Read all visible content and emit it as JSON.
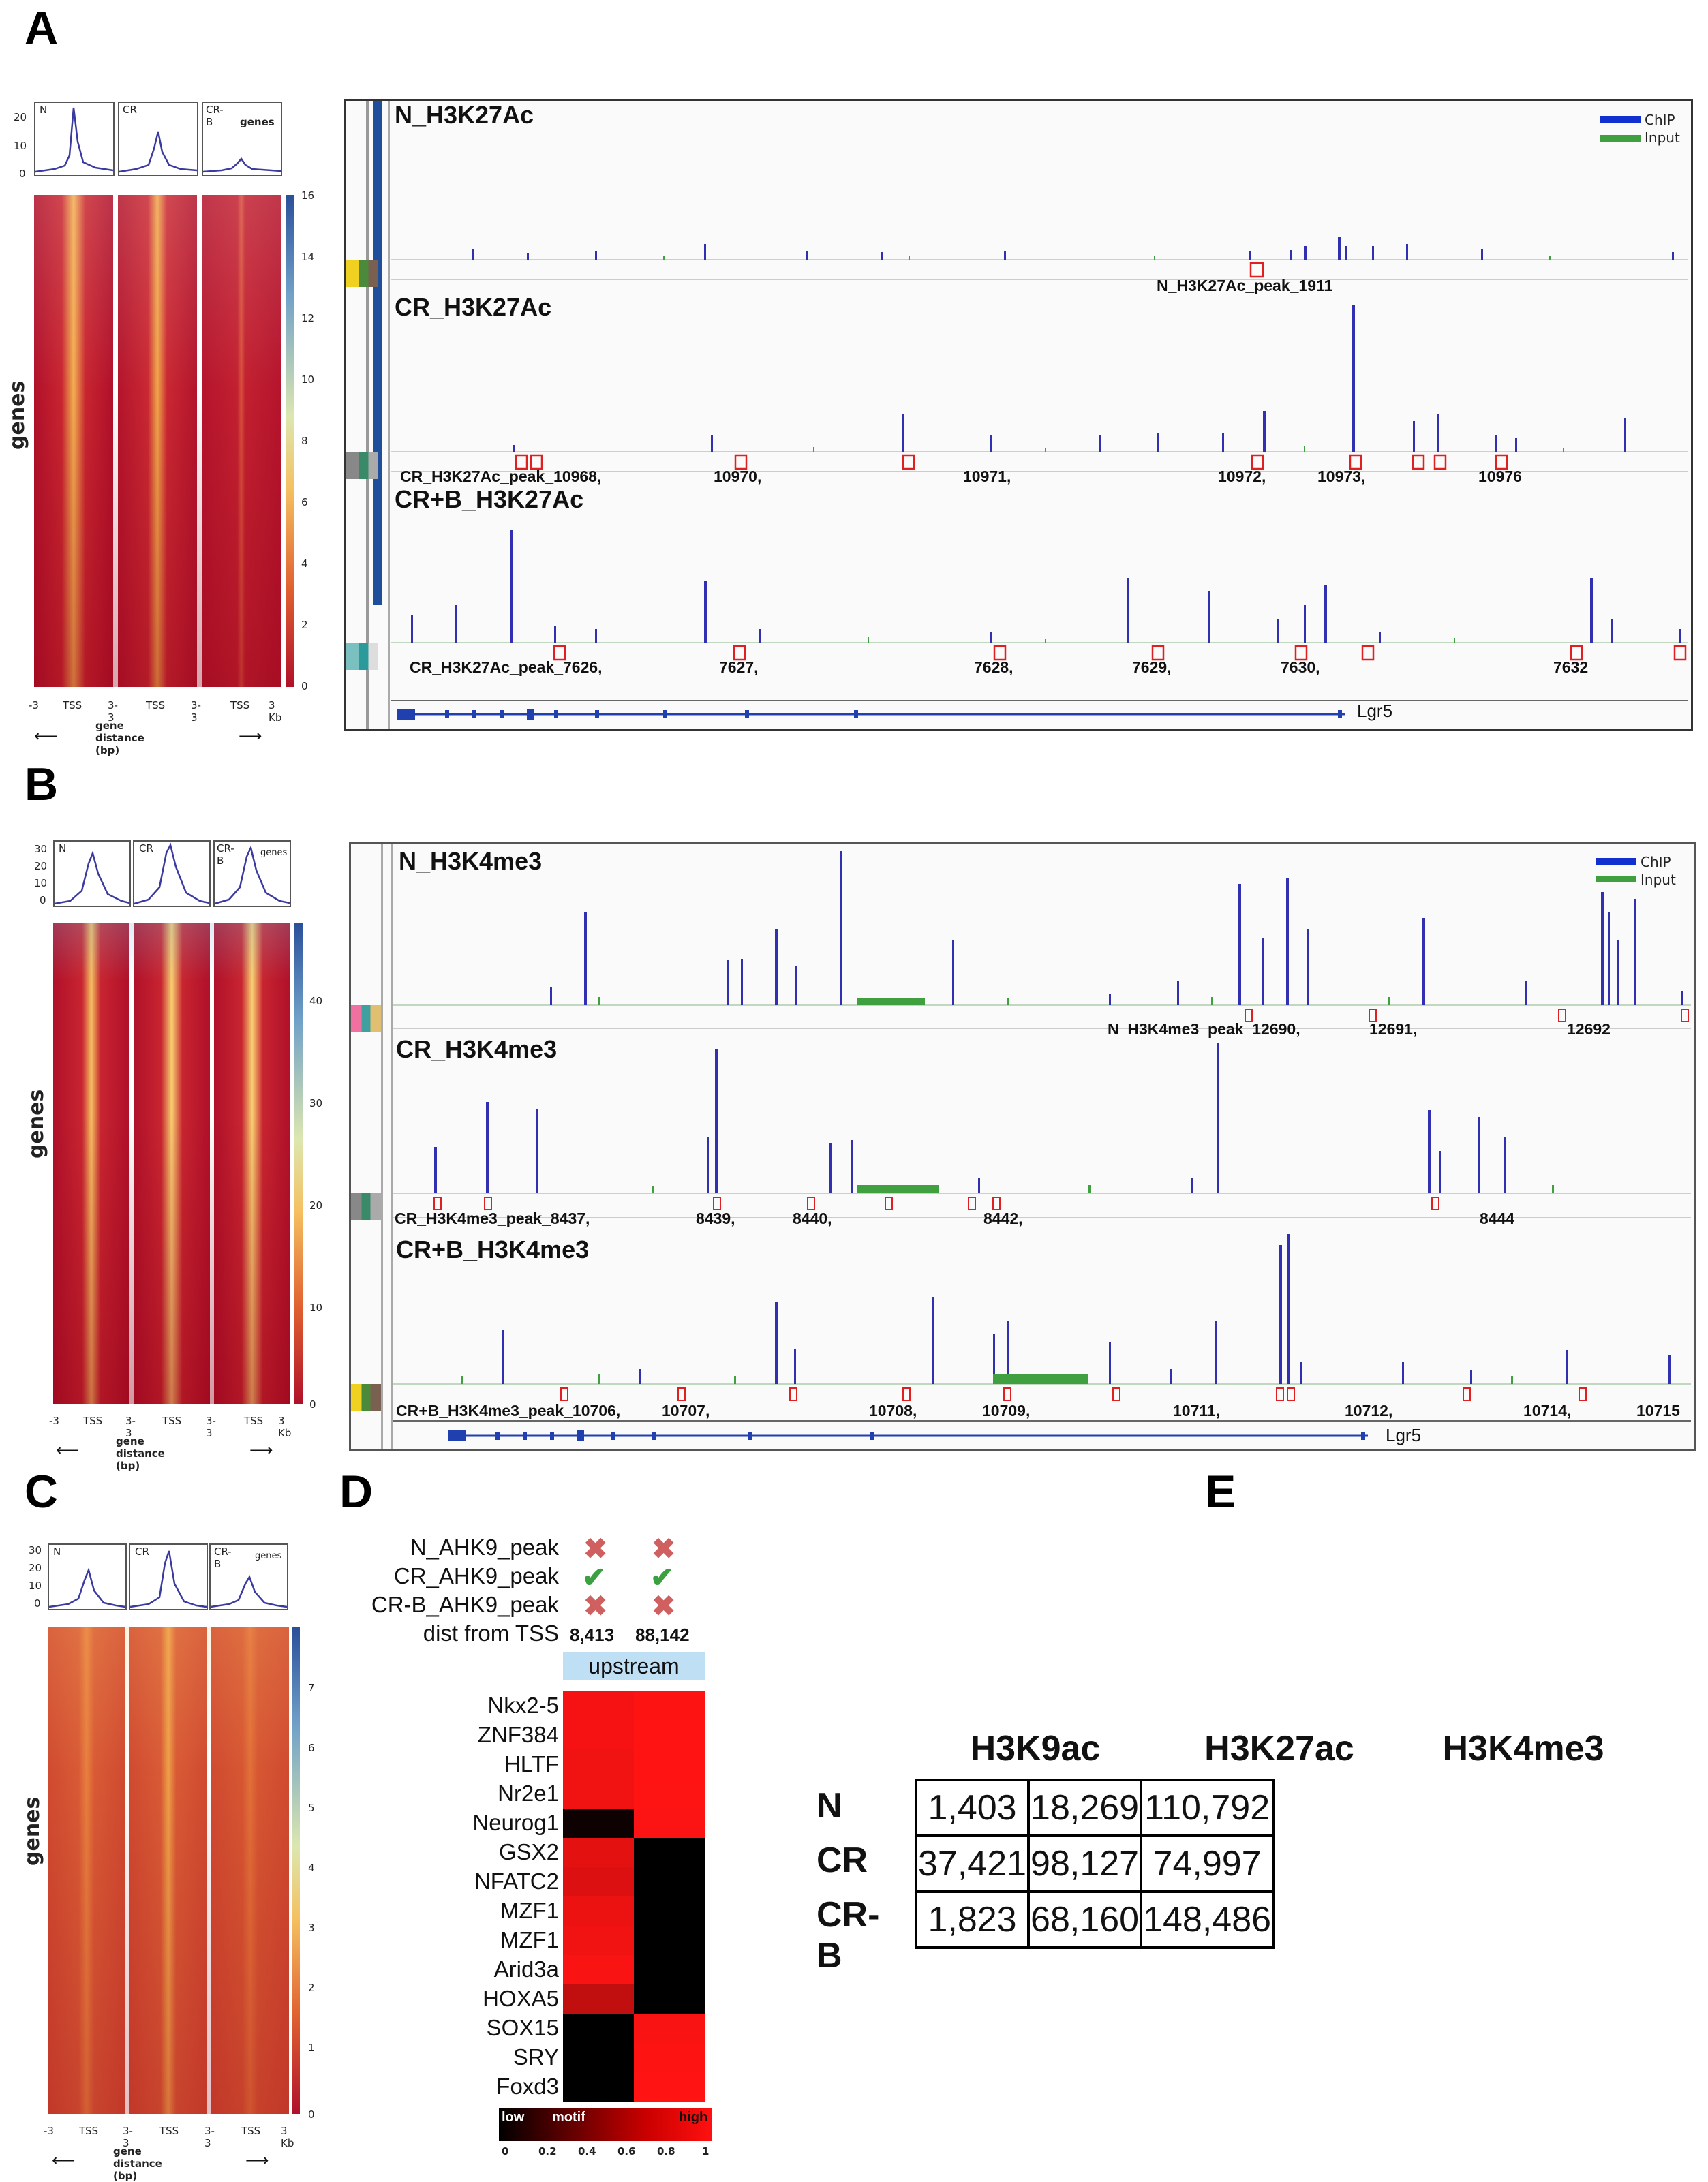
{
  "panels": {
    "a": "A",
    "b": "B",
    "c": "C",
    "d": "D",
    "e": "E"
  },
  "heatmap_common": {
    "xticks": [
      "-3",
      "TSS",
      "3-3",
      "TSS",
      "3-3",
      "TSS",
      "3 Kb"
    ],
    "xlabel": "gene distance (bp)",
    "ylabel": "genes",
    "col_labels": [
      "N",
      "CR",
      "CR-B"
    ],
    "profile_legend": "genes"
  },
  "heatmap_a": {
    "cbar_ticks": [
      "16",
      "14",
      "12",
      "10",
      "8",
      "6",
      "4",
      "2",
      "0"
    ],
    "profile_yticks": [
      "20",
      "10",
      "0"
    ]
  },
  "heatmap_b": {
    "cbar_ticks": [
      "40",
      "30",
      "20",
      "10",
      "0"
    ],
    "profile_yticks": [
      "30",
      "20",
      "10",
      "0"
    ]
  },
  "heatmap_c": {
    "cbar_ticks": [
      "7",
      "6",
      "5",
      "4",
      "3",
      "2",
      "1",
      "0"
    ],
    "profile_yticks": [
      "30",
      "20",
      "10",
      "0"
    ]
  },
  "browser_a": {
    "legend": [
      "ChIP",
      "Input"
    ],
    "tracks": [
      {
        "title": "N_H3K27Ac",
        "peaks": [
          "N_H3K27Ac_peak_1911"
        ]
      },
      {
        "title": "CR_H3K27Ac",
        "peaks": [
          "CR_H3K27Ac_peak_10968,",
          "10970,",
          "10971,",
          "10972,",
          "10973,",
          "10976"
        ]
      },
      {
        "title": "CR+B_H3K27Ac",
        "peaks": [
          "CR_H3K27Ac_peak_7626,",
          "7627,",
          "7628,",
          "7629,",
          "7630,",
          "7632"
        ]
      }
    ],
    "gene": "Lgr5"
  },
  "browser_b": {
    "legend": [
      "ChIP",
      "Input"
    ],
    "tracks": [
      {
        "title": "N_H3K4me3",
        "peaks": [
          "N_H3K4me3_peak_12690,",
          "12691,",
          "12692"
        ]
      },
      {
        "title": "CR_H3K4me3",
        "peaks": [
          "CR_H3K4me3_peak_8437,",
          "8439,",
          "8440,",
          "8442,",
          "8444"
        ]
      },
      {
        "title": "CR+B_H3K4me3",
        "peaks": [
          "CR+B_H3K4me3_peak_10706,",
          "10707,",
          "10708,",
          "10709,",
          "10711,",
          "10712,",
          "10714,",
          "10715"
        ]
      }
    ],
    "gene": "Lgr5"
  },
  "panel_d": {
    "rows": [
      "N_AHK9_peak",
      "CR_AHK9_peak",
      "CR-B_AHK9_peak",
      "dist from TSS"
    ],
    "marks": [
      [
        "x",
        "x"
      ],
      [
        "check",
        "check"
      ],
      [
        "x",
        "x"
      ]
    ],
    "dist": [
      "8,413",
      "88,142"
    ],
    "header": "upstream",
    "genes": [
      "Nkx2-5",
      "ZNF384",
      "HLTF",
      "Nr2e1",
      "Neurog1",
      "GSX2",
      "NFATC2",
      "MZF1",
      "MZF1",
      "Arid3a",
      "HOXA5",
      "SOX15",
      "SRY",
      "Foxd3"
    ],
    "values": [
      [
        0.92,
        0.95
      ],
      [
        0.92,
        0.96
      ],
      [
        0.9,
        0.97
      ],
      [
        0.9,
        0.99
      ],
      [
        0.05,
        0.94
      ],
      [
        0.85,
        0.0
      ],
      [
        0.82,
        0.0
      ],
      [
        0.88,
        0.0
      ],
      [
        0.9,
        0.0
      ],
      [
        0.93,
        0.0
      ],
      [
        0.72,
        0.0
      ],
      [
        0.0,
        0.93
      ],
      [
        0.0,
        0.95
      ],
      [
        0.0,
        0.97
      ]
    ],
    "scale_low": "low",
    "scale_mid": "motif similarity",
    "scale_high": "high",
    "scale_ticks": [
      "0",
      "0.2",
      "0.4",
      "0.6",
      "0.8",
      "1"
    ]
  },
  "panel_e": {
    "columns": [
      "H3K9ac",
      "H3K27ac",
      "H3K4me3"
    ],
    "rows": [
      {
        "label": "N",
        "values": [
          "1,403",
          "18,269",
          "110,792"
        ]
      },
      {
        "label": "CR",
        "values": [
          "37,421",
          "98,127",
          "74,997"
        ]
      },
      {
        "label": "CR-B",
        "values": [
          "1,823",
          "68,160",
          "148,486"
        ]
      }
    ]
  }
}
